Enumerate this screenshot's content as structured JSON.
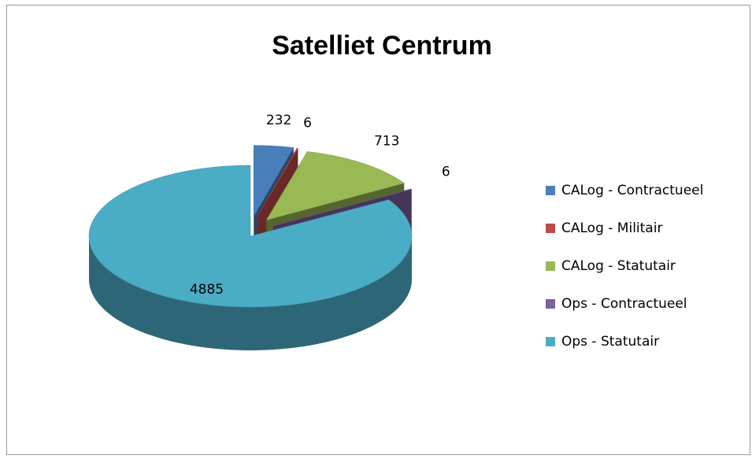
{
  "chart_data": {
    "type": "pie",
    "title": "Satelliet Centrum",
    "categories": [
      "CALog - Contractueel",
      "CALog - Militair",
      "CALog - Statutair",
      "Ops - Contractueel",
      "Ops - Statutair"
    ],
    "values": [
      232,
      6,
      713,
      6,
      4885
    ],
    "colors": [
      "#4a7ebb",
      "#be4b48",
      "#98b954",
      "#7d60a0",
      "#4bacc6"
    ],
    "exploded": [
      true,
      true,
      true,
      true,
      false
    ],
    "legend": "right"
  }
}
